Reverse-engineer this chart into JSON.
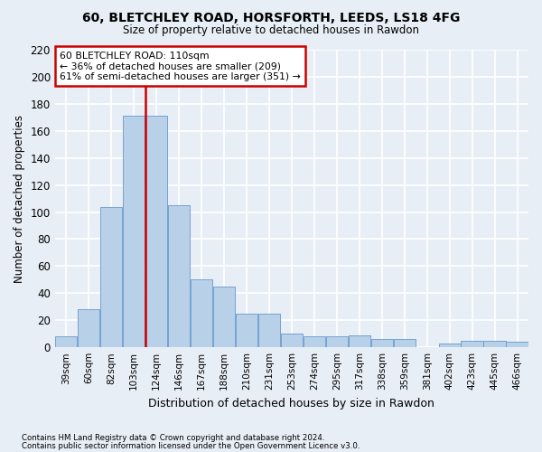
{
  "title1": "60, BLETCHLEY ROAD, HORSFORTH, LEEDS, LS18 4FG",
  "title2": "Size of property relative to detached houses in Rawdon",
  "xlabel": "Distribution of detached houses by size in Rawdon",
  "ylabel": "Number of detached properties",
  "footnote1": "Contains HM Land Registry data © Crown copyright and database right 2024.",
  "footnote2": "Contains public sector information licensed under the Open Government Licence v3.0.",
  "bar_labels": [
    "39sqm",
    "60sqm",
    "82sqm",
    "103sqm",
    "124sqm",
    "146sqm",
    "167sqm",
    "188sqm",
    "210sqm",
    "231sqm",
    "253sqm",
    "274sqm",
    "295sqm",
    "317sqm",
    "338sqm",
    "359sqm",
    "381sqm",
    "402sqm",
    "423sqm",
    "445sqm",
    "466sqm"
  ],
  "bar_values": [
    8,
    28,
    104,
    171,
    171,
    105,
    50,
    45,
    25,
    25,
    10,
    8,
    8,
    9,
    6,
    6,
    0,
    3,
    5,
    5,
    4
  ],
  "bar_color": "#b8d0e8",
  "bar_edge_color": "#6699cc",
  "background_color": "#e8eef5",
  "grid_color": "#ffffff",
  "annotation_line1": "60 BLETCHLEY ROAD: 110sqm",
  "annotation_line2": "← 36% of detached houses are smaller (209)",
  "annotation_line3": "61% of semi-detached houses are larger (351) →",
  "annotation_box_color": "#ffffff",
  "annotation_box_edge": "#cc0000",
  "red_line_color": "#cc0000",
  "ylim": [
    0,
    220
  ],
  "yticks": [
    0,
    20,
    40,
    60,
    80,
    100,
    120,
    140,
    160,
    180,
    200,
    220
  ]
}
